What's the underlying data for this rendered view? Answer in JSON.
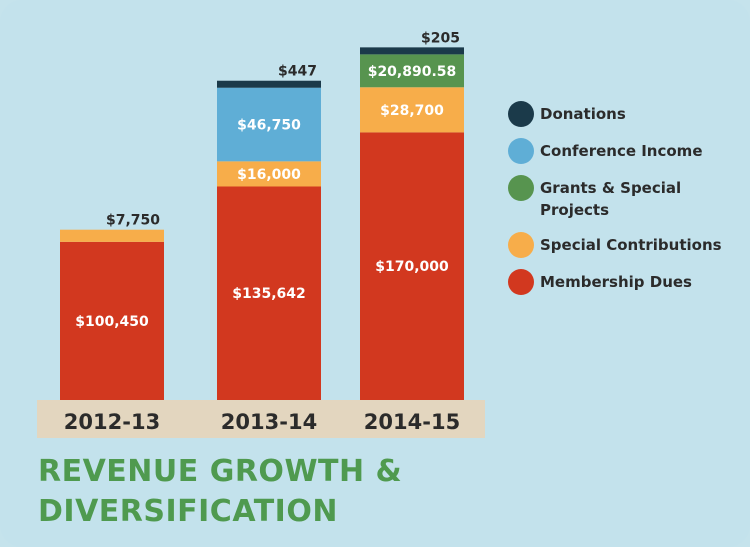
{
  "title": "REVENUE GROWTH & DIVERSIFICATION",
  "chart_data": {
    "type": "bar",
    "stacked": true,
    "title": "REVENUE GROWTH & DIVERSIFICATION",
    "categories": [
      "2012-13",
      "2013-14",
      "2014-15"
    ],
    "ylim": [
      0,
      220000
    ],
    "grid": false,
    "legend_position": "right",
    "series": [
      {
        "name": "Membership Dues",
        "color": "#d2381f",
        "values": [
          100450,
          135642,
          170000
        ],
        "labels": [
          "$100,450",
          "$135,642",
          "$170,000"
        ]
      },
      {
        "name": "Special Contributions",
        "color": "#f7ad4a",
        "values": [
          7750,
          16000,
          28700
        ],
        "labels": [
          "$7,750",
          "$16,000",
          "$28,700"
        ]
      },
      {
        "name": "Grants & Special Projects",
        "color": "#57944f",
        "values": [
          0,
          0,
          20890.58
        ],
        "labels": [
          "",
          "",
          "$20,890.58"
        ]
      },
      {
        "name": "Conference Income",
        "color": "#5faed6",
        "values": [
          0,
          46750,
          0
        ],
        "labels": [
          "",
          "$46,750",
          ""
        ]
      },
      {
        "name": "Donations",
        "color": "#1b3a4a",
        "values": [
          0,
          447,
          205
        ],
        "labels": [
          "",
          "$447",
          "$205"
        ]
      }
    ],
    "legend": [
      {
        "name": "Donations",
        "color": "#1b3a4a"
      },
      {
        "name": "Conference Income",
        "color": "#5faed6"
      },
      {
        "name": "Grants & Special Projects",
        "color": "#57944f"
      },
      {
        "name": "Special Contributions",
        "color": "#f7ad4a"
      },
      {
        "name": "Membership Dues",
        "color": "#d2381f"
      }
    ],
    "axis_band_color": "#e3d6bf"
  }
}
